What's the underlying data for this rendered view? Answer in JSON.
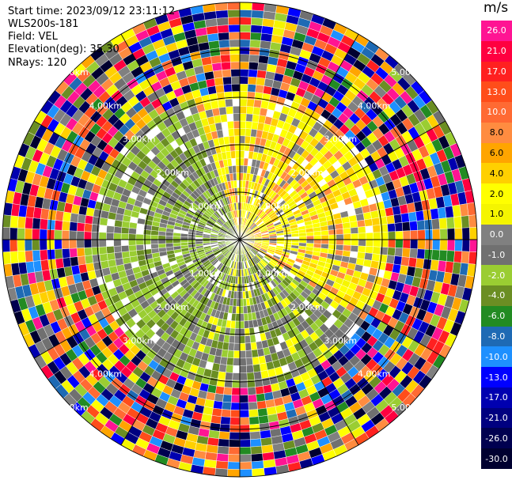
{
  "header": {
    "start_time": "Start time: 2023/09/12 23:11:12",
    "site": "WLS200s-181",
    "field": "Field: VEL",
    "elevation": "Elevation(deg): 35.30",
    "nrays": "NRays: 120"
  },
  "colorbar": {
    "unit": "m/s",
    "entries": [
      {
        "label": "26.0",
        "color": "#ff1493"
      },
      {
        "label": "21.0",
        "color": "#ff0040"
      },
      {
        "label": "17.0",
        "color": "#ff2020"
      },
      {
        "label": "13.0",
        "color": "#ff4d1a"
      },
      {
        "label": "10.0",
        "color": "#ff6a33"
      },
      {
        "label": "8.0",
        "color": "#ff8c40"
      },
      {
        "label": "6.0",
        "color": "#ffa500"
      },
      {
        "label": "4.0",
        "color": "#ffd000"
      },
      {
        "label": "2.0",
        "color": "#ffff00"
      },
      {
        "label": "1.0",
        "color": "#f5f500"
      },
      {
        "label": "0.0",
        "color": "#808080"
      },
      {
        "label": "-1.0",
        "color": "#707070"
      },
      {
        "label": "-2.0",
        "color": "#9acd32"
      },
      {
        "label": "-4.0",
        "color": "#6b8e23"
      },
      {
        "label": "-6.0",
        "color": "#228b22"
      },
      {
        "label": "-8.0",
        "color": "#1e6ab4"
      },
      {
        "label": "-10.0",
        "color": "#1e90ff"
      },
      {
        "label": "-13.0",
        "color": "#0000ff"
      },
      {
        "label": "-17.0",
        "color": "#0000b0"
      },
      {
        "label": "-21.0",
        "color": "#000080"
      },
      {
        "label": "-26.0",
        "color": "#000050"
      },
      {
        "label": "-30.0",
        "color": "#000030"
      }
    ]
  },
  "range_rings": {
    "labels": [
      "1.00km",
      "2.00km",
      "3.00km",
      "4.00km",
      "5.00km"
    ]
  }
}
